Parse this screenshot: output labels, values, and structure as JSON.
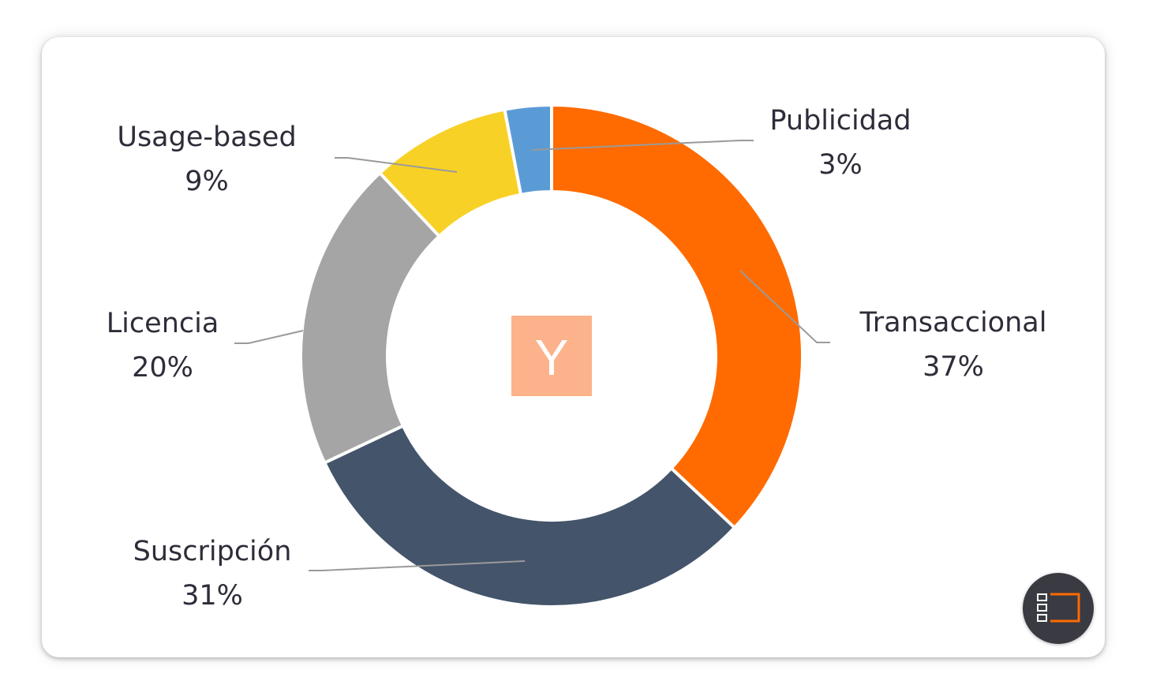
{
  "chart_data": {
    "type": "pie",
    "variant": "donut",
    "slices": [
      {
        "label": "Transaccional",
        "value": 37,
        "display": "37%",
        "color": "#ff6b00"
      },
      {
        "label": "Suscripción",
        "value": 31,
        "display": "31%",
        "color": "#44546a"
      },
      {
        "label": "Licencia",
        "value": 20,
        "display": "20%",
        "color": "#a5a5a5"
      },
      {
        "label": "Usage-based",
        "value": 9,
        "display": "9%",
        "color": "#f8d126"
      },
      {
        "label": "Publicidad",
        "value": 3,
        "display": "3%",
        "color": "#5b9bd5"
      }
    ],
    "start": "12 o'clock",
    "direction": "clockwise"
  },
  "center_logo": {
    "letter": "Y",
    "color": "#fcb28b"
  },
  "floating_button": {
    "icon": "layout-panel-icon",
    "color": "#3a3a42",
    "accent": "#ff6b00"
  }
}
